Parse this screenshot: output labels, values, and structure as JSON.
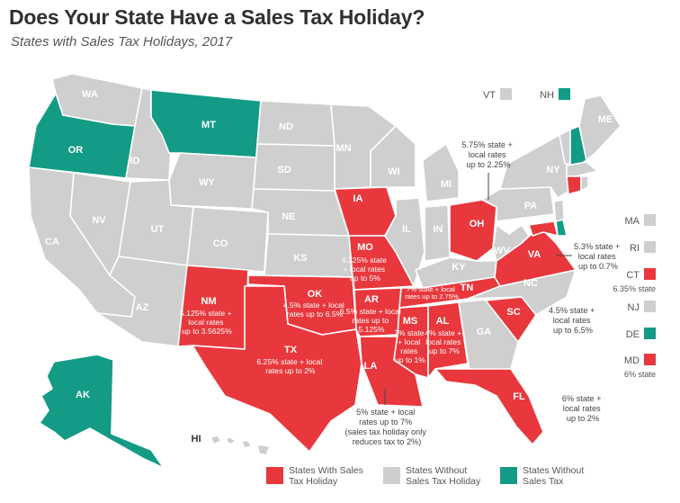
{
  "title": "Does Your State Have a Sales Tax Holiday?",
  "subtitle": "States with Sales Tax Holidays, 2017",
  "colors": {
    "holiday": "#e8383d",
    "no_holiday": "#cfcfcf",
    "no_sales_tax": "#139b85"
  },
  "states": {
    "WA": "WA",
    "OR": "OR",
    "CA": "CA",
    "NV": "NV",
    "ID": "ID",
    "MT": "MT",
    "WY": "WY",
    "UT": "UT",
    "AZ": "AZ",
    "CO": "CO",
    "NM": "NM",
    "ND": "ND",
    "SD": "SD",
    "NE": "NE",
    "KS": "KS",
    "OK": "OK",
    "TX": "TX",
    "MN": "MN",
    "IA": "IA",
    "MO": "MO",
    "AR": "AR",
    "LA": "LA",
    "WI": "WI",
    "IL": "IL",
    "MI": "MI",
    "IN": "IN",
    "OH": "OH",
    "KY": "KY",
    "TN": "TN",
    "MS": "MS",
    "AL": "AL",
    "GA": "GA",
    "FL": "FL",
    "SC": "SC",
    "NC": "NC",
    "VA": "VA",
    "WV": "WV",
    "PA": "PA",
    "NY": "NY",
    "ME": "ME",
    "AK": "AK",
    "HI": "HI"
  },
  "side_states": {
    "VT": "VT",
    "NH": "NH",
    "MA": "MA",
    "RI": "RI",
    "CT": "CT",
    "NJ": "NJ",
    "DE": "DE",
    "MD": "MD"
  },
  "notes": {
    "NM": [
      "5.125% state +",
      "local rates",
      "up to 3.5625%"
    ],
    "TX": [
      "6.25% state + local",
      "rates up to 2%"
    ],
    "OK": [
      "4.5% state + local",
      "rates up to 6.5%"
    ],
    "MO": [
      "4.225% state",
      "+ local rates",
      "up to 5%"
    ],
    "AR": [
      "6.5% state + local",
      "rates up to",
      "5.125%"
    ],
    "MS": [
      "7% state",
      "+ local",
      "rates",
      "up to 1%"
    ],
    "AL": [
      "4% state +",
      "local rates",
      "up to 7%"
    ],
    "TN": [
      "7% state + local",
      "rates up to 2.75%"
    ],
    "OH": [
      "5.75% state +",
      "local rates",
      "up to 2.25%"
    ],
    "VA": [
      "5.3% state +",
      "local rates",
      "up to 0.7%"
    ],
    "CT": "6.35% state",
    "MD": "6% state",
    "SC": [
      "4.5% state +",
      "local rates",
      "up to 6.5%"
    ],
    "FL": [
      "6% state +",
      "local rates",
      "up to 2%"
    ],
    "LA": [
      "5% state + local",
      "rates up to 7%",
      "(sales tax holiday only",
      "reduces tax to 2%)"
    ]
  },
  "legend": {
    "holiday": [
      "States With Sales",
      "Tax Holiday"
    ],
    "no_holiday": [
      "States Without",
      "Sales Tax Holiday"
    ],
    "no_sales_tax": [
      "States Without",
      "Sales Tax"
    ]
  }
}
